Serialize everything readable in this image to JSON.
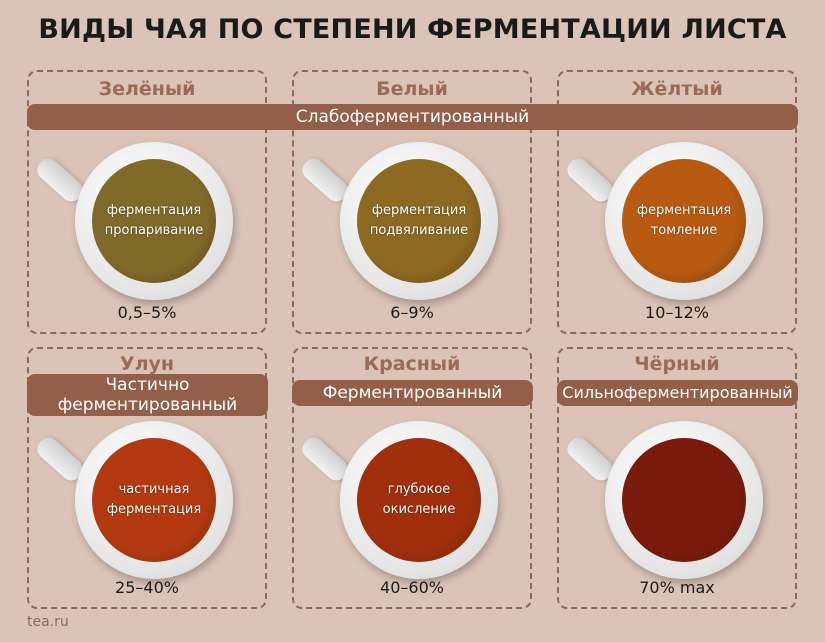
{
  "title": "ВИДЫ ЧАЯ ПО СТЕПЕНИ ФЕРМЕНТАЦИИ ЛИСТА",
  "top_banner": "Слабоферментированный",
  "teas": [
    {
      "name": "Зелёный",
      "process": [
        "ферментация",
        "пропаривание"
      ],
      "percent": "0,5–5%",
      "color": "#7f6a2a"
    },
    {
      "name": "Белый",
      "process": [
        "ферментация",
        "подвяливание"
      ],
      "percent": "6–9%",
      "color": "#8d6a22"
    },
    {
      "name": "Жёлтый",
      "process": [
        "ферментация",
        "томление"
      ],
      "percent": "10–12%",
      "color": "#b85a12"
    },
    {
      "name": "Улун",
      "category": [
        "Частично",
        "ферментированный"
      ],
      "process": [
        "частичная",
        "ферментация"
      ],
      "percent": "25–40%",
      "color": "#b33a10"
    },
    {
      "name": "Красный",
      "category": [
        "Ферментированный"
      ],
      "process": [
        "глубокое",
        "окисление"
      ],
      "percent": "40–60%",
      "color": "#a12e0c"
    },
    {
      "name": "Чёрный",
      "category": [
        "Сильноферментированный"
      ],
      "process": [],
      "percent": "70% max",
      "color": "#7a1a0c"
    }
  ],
  "footer": "tea.ru"
}
